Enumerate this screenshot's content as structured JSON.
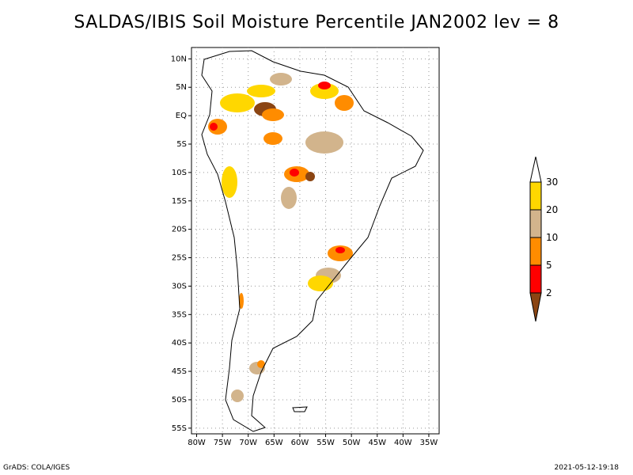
{
  "title": "SALDAS/IBIS Soil Moisture Percentile JAN2002 lev = 8",
  "footer": {
    "left": "GrADS: COLA/IGES",
    "right": "2021-05-12-19:18"
  },
  "axes": {
    "x_labels": [
      "80W",
      "75W",
      "70W",
      "65W",
      "60W",
      "55W",
      "50W",
      "45W",
      "40W",
      "35W"
    ],
    "x_values": [
      -80,
      -75,
      -70,
      -65,
      -60,
      -55,
      -50,
      -45,
      -40,
      -35
    ],
    "y_labels": [
      "10N",
      "5N",
      "EQ",
      "5S",
      "10S",
      "15S",
      "20S",
      "25S",
      "30S",
      "35S",
      "40S",
      "45S",
      "50S",
      "55S"
    ],
    "y_values": [
      10,
      5,
      0,
      -5,
      -10,
      -15,
      -20,
      -25,
      -30,
      -35,
      -40,
      -45,
      -50,
      -55
    ],
    "lon_range": [
      -81,
      -33
    ],
    "lat_range": [
      -56,
      12
    ],
    "grid": "dotted"
  },
  "colorbar": {
    "labels": [
      "30",
      "20",
      "10",
      "5",
      "2"
    ],
    "bins": [
      {
        "color": "#ffffff",
        "label": ">30"
      },
      {
        "color": "#ffd700",
        "label": "20-30"
      },
      {
        "color": "#d2b48c",
        "label": "10-20"
      },
      {
        "color": "#ff8c00",
        "label": "5-10"
      },
      {
        "color": "#ff0000",
        "label": "2-5"
      },
      {
        "color": "#8b4513",
        "label": "<2"
      }
    ]
  }
}
